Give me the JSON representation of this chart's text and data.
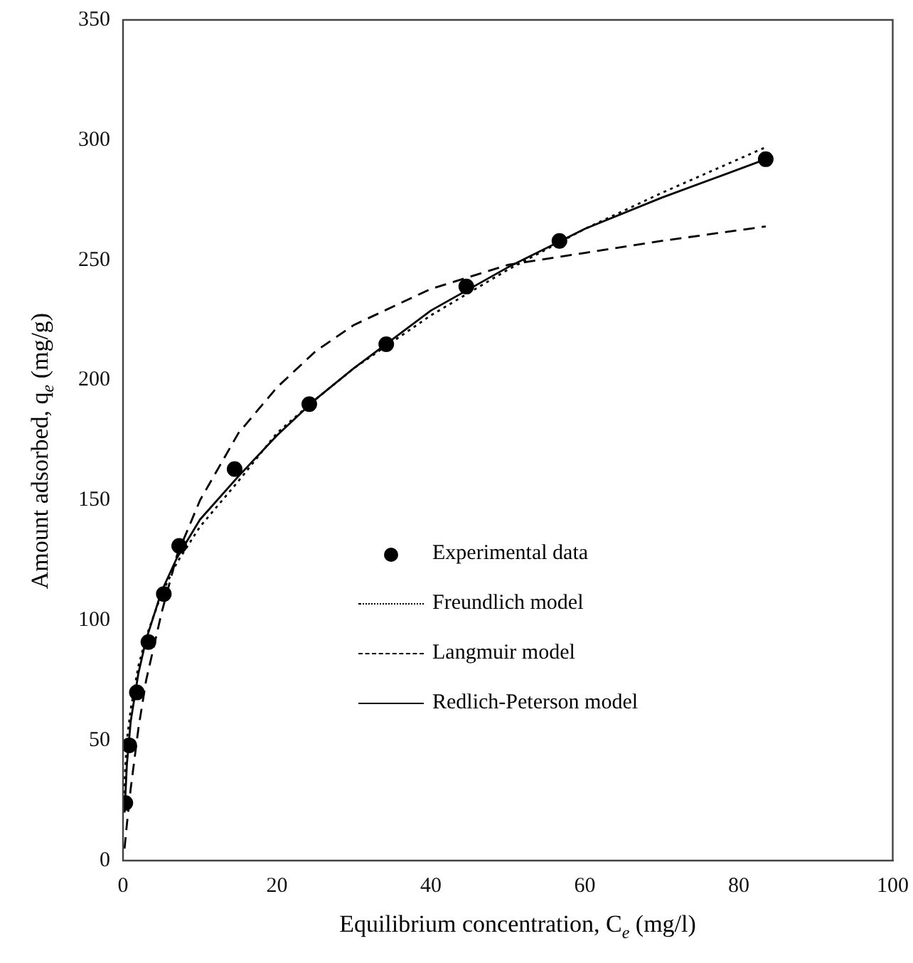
{
  "chart_data": {
    "type": "line",
    "xlabel": "Equilibrium concentration, C$_{e}$ (mg/l)",
    "ylabel": "Amount adsorbed, q$_{e}$ (mg/g)",
    "xlim": [
      0,
      100
    ],
    "xticks": [
      0,
      20,
      40,
      60,
      80,
      100
    ],
    "ylim": [
      0,
      350
    ],
    "yticks": [
      0,
      50,
      100,
      150,
      200,
      250,
      300,
      350
    ],
    "grid": false,
    "legend": "right",
    "series": [
      {
        "name": "Experimental data",
        "type": "scatter",
        "marker": "circle",
        "color": "#000000",
        "x": [
          0.3,
          0.8,
          1.8,
          3.3,
          5.3,
          7.3,
          14.5,
          24.2,
          34.2,
          44.6,
          56.7,
          83.5
        ],
        "values": [
          24,
          48,
          70,
          91,
          111,
          131,
          163,
          190,
          215,
          239,
          258,
          292
        ]
      },
      {
        "name": "Freundlich model",
        "type": "line",
        "marker": "none",
        "line_style": "dotted",
        "color": "#000000",
        "x": [
          0.1,
          0.5,
          1,
          2,
          3,
          5,
          7,
          10,
          15,
          20,
          25,
          30,
          40,
          50,
          60,
          70,
          83.5
        ],
        "values": [
          28,
          50,
          63,
          81,
          93,
          111,
          124,
          139,
          158,
          178,
          192,
          205,
          227,
          246,
          263,
          278,
          297
        ]
      },
      {
        "name": "Langmuir model",
        "type": "line",
        "marker": "none",
        "line_style": "dashed",
        "color": "#000000",
        "x": [
          0.2,
          0.5,
          1,
          2,
          3,
          5,
          7,
          10,
          15,
          20,
          25,
          30,
          40,
          50,
          60,
          70,
          83.5
        ],
        "values": [
          5,
          15,
          30,
          55,
          75,
          103,
          127,
          150,
          178,
          197,
          212,
          223,
          238,
          248,
          253,
          258,
          264
        ]
      },
      {
        "name": "Redlich-Peterson model",
        "type": "line",
        "marker": "none",
        "line_style": "solid",
        "color": "#000000",
        "x": [
          0.2,
          0.5,
          1,
          2,
          3,
          5,
          7,
          10,
          15,
          20,
          25,
          30,
          40,
          50,
          60,
          70,
          83.5
        ],
        "values": [
          20,
          40,
          58,
          78,
          92,
          112,
          126,
          142,
          160,
          177,
          192,
          205,
          229,
          247,
          263,
          276,
          292
        ]
      }
    ]
  }
}
